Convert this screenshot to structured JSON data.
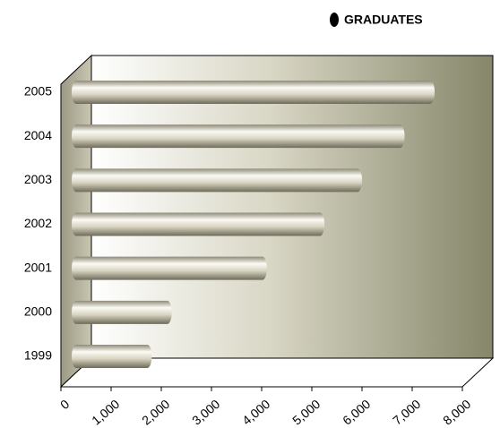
{
  "chart_data": {
    "type": "bar",
    "orientation": "horizontal",
    "categories": [
      "1999",
      "2000",
      "2001",
      "2002",
      "2003",
      "2004",
      "2005"
    ],
    "series": [
      {
        "name": "GRADUATES",
        "color": "#d9d5c2",
        "values": [
          1600,
          2000,
          3900,
          5050,
          5800,
          6650,
          7250
        ]
      }
    ],
    "xlim": [
      0,
      8000
    ],
    "xticks": [
      0,
      {
        "value": 1000,
        "label": "1,000"
      },
      {
        "value": 2000,
        "label": "2,000"
      },
      {
        "value": 3000,
        "label": "3,000"
      },
      {
        "value": 4000,
        "label": "4,000"
      },
      {
        "value": 5000,
        "label": "5,000"
      },
      {
        "value": 6000,
        "label": "6,000"
      },
      {
        "value": 7000,
        "label": "7,000"
      },
      {
        "value": 8000,
        "label": "8,000"
      }
    ],
    "legend": "top-right"
  }
}
